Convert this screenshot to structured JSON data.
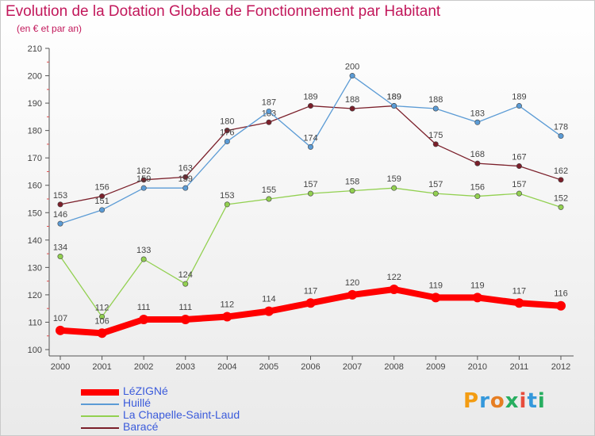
{
  "header": {
    "title": "Evolution de la Dotation Globale de Fonctionnement par Habitant",
    "subtitle": "(en € et par an)"
  },
  "logo": {
    "text": "Proxiti",
    "colors": [
      "#f39c12",
      "#3498db",
      "#e67e22",
      "#27ae60",
      "#e74c3c",
      "#3498db",
      "#27ae60"
    ]
  },
  "chart_data": {
    "type": "line",
    "title": "Evolution de la Dotation Globale de Fonctionnement par Habitant",
    "subtitle": "(en € et par an)",
    "x": [
      "2000",
      "2001",
      "2002",
      "2003",
      "2004",
      "2005",
      "2006",
      "2007",
      "2008",
      "2009",
      "2010",
      "2011",
      "2012"
    ],
    "ylim": [
      100,
      210
    ],
    "yticks": [
      100,
      110,
      120,
      130,
      140,
      150,
      160,
      170,
      180,
      190,
      200,
      210
    ],
    "grid": false,
    "legend_position": "bottom-left",
    "series": [
      {
        "name": "LéZIGNé",
        "color": "#ff0000",
        "values": [
          107,
          106,
          111,
          111,
          112,
          114,
          117,
          120,
          122,
          119,
          119,
          117,
          116
        ]
      },
      {
        "name": "Huillé",
        "color": "#5b9bd5",
        "values": [
          146,
          151,
          159,
          159,
          176,
          187,
          174,
          200,
          189,
          188,
          183,
          189,
          178
        ]
      },
      {
        "name": "La Chapelle-Saint-Laud",
        "color": "#92d050",
        "values": [
          134,
          112,
          133,
          124,
          153,
          155,
          157,
          158,
          159,
          157,
          156,
          157,
          152
        ]
      },
      {
        "name": "Baracé",
        "color": "#7b1f2a",
        "values": [
          153,
          156,
          162,
          163,
          180,
          183,
          189,
          188,
          189,
          175,
          168,
          167,
          162
        ]
      }
    ]
  }
}
